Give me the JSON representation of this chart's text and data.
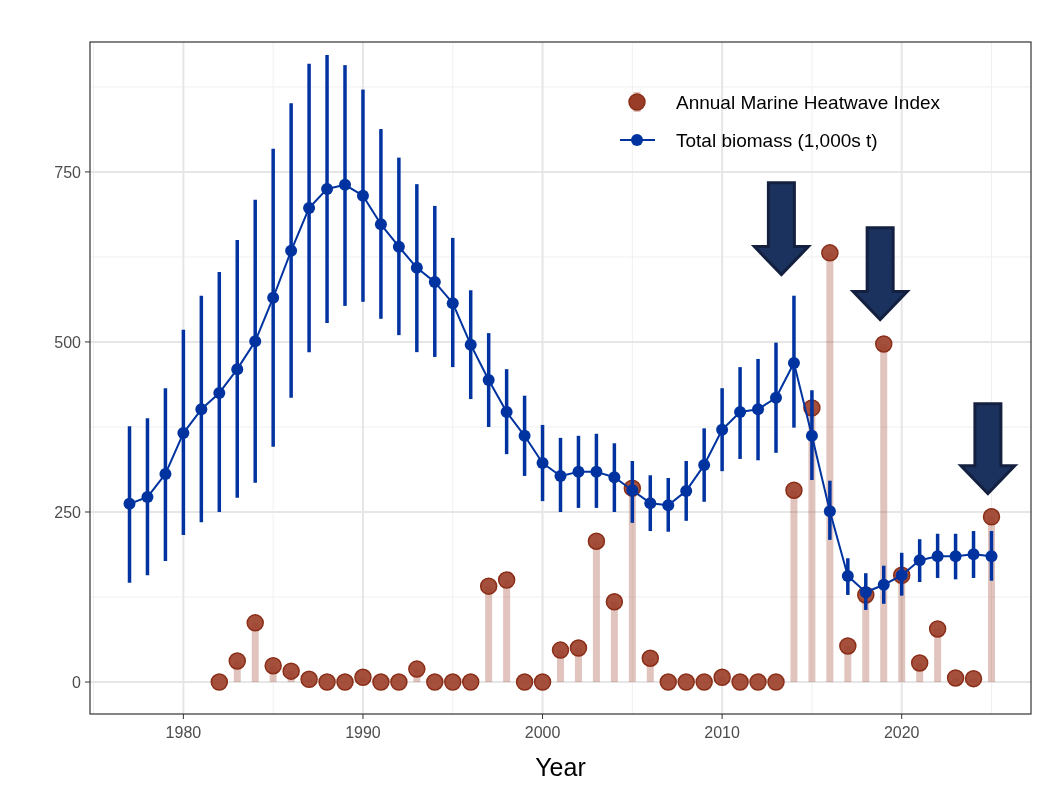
{
  "chart_data": {
    "type": "line",
    "xlabel": "Year",
    "xlim": [
      1974.8,
      2027.2
    ],
    "ylim": [
      -47,
      941
    ],
    "xticks": [
      1980,
      1990,
      2000,
      2010,
      2020
    ],
    "yticks": [
      0,
      250,
      500,
      750
    ],
    "grid": true,
    "legend": "top right",
    "series": [
      {
        "name": "Annual Marine Heatwave Index",
        "type": "lollipop",
        "color": "#9a3d28",
        "x": [
          1982,
          1983,
          1984,
          1985,
          1986,
          1987,
          1988,
          1989,
          1990,
          1991,
          1992,
          1993,
          1994,
          1995,
          1996,
          1997,
          1998,
          1999,
          2000,
          2001,
          2002,
          2003,
          2004,
          2005,
          2006,
          2007,
          2008,
          2009,
          2010,
          2011,
          2012,
          2013,
          2014,
          2015,
          2016,
          2017,
          2018,
          2019,
          2020,
          2021,
          2022,
          2023,
          2024,
          2025
        ],
        "values": [
          0,
          31,
          87,
          24,
          16,
          4,
          0,
          0,
          7,
          0,
          0,
          19,
          0,
          0,
          0,
          141,
          150,
          0,
          0,
          47,
          50,
          207,
          118,
          285,
          35,
          0,
          0,
          0,
          7,
          0,
          0,
          0,
          282,
          403,
          631,
          53,
          128,
          497,
          157,
          28,
          78,
          6,
          5,
          243
        ]
      },
      {
        "name": "Total biomass (1,000s t)",
        "color": "#0033a0",
        "marker": "circle",
        "x": [
          1977,
          1978,
          1979,
          1980,
          1981,
          1982,
          1983,
          1984,
          1985,
          1986,
          1987,
          1988,
          1989,
          1990,
          1991,
          1992,
          1993,
          1994,
          1995,
          1996,
          1997,
          1998,
          1999,
          2000,
          2001,
          2002,
          2003,
          2004,
          2005,
          2006,
          2007,
          2008,
          2009,
          2010,
          2011,
          2012,
          2013,
          2014,
          2015,
          2016,
          2017,
          2018,
          2019,
          2020,
          2021,
          2022,
          2023,
          2024,
          2025
        ],
        "values": [
          262,
          272,
          306,
          366,
          401,
          425,
          460,
          501,
          565,
          634,
          697,
          725,
          731,
          715,
          673,
          640,
          609,
          588,
          557,
          496,
          444,
          397,
          362,
          322,
          303,
          309,
          309,
          301,
          282,
          263,
          260,
          281,
          319,
          371,
          397,
          401,
          418,
          469,
          362,
          251,
          156,
          132,
          143,
          157,
          179,
          185,
          185,
          188,
          185
        ],
        "errors": [
          [
            146,
            376
          ],
          [
            157,
            388
          ],
          [
            178,
            432
          ],
          [
            216,
            518
          ],
          [
            235,
            568
          ],
          [
            250,
            603
          ],
          [
            271,
            650
          ],
          [
            293,
            709
          ],
          [
            346,
            784
          ],
          [
            418,
            851
          ],
          [
            485,
            909
          ],
          [
            528,
            922
          ],
          [
            553,
            907
          ],
          [
            559,
            871
          ],
          [
            534,
            813
          ],
          [
            510,
            771
          ],
          [
            485,
            732
          ],
          [
            478,
            700
          ],
          [
            463,
            653
          ],
          [
            416,
            576
          ],
          [
            375,
            513
          ],
          [
            335,
            460
          ],
          [
            303,
            421
          ],
          [
            266,
            378
          ],
          [
            250,
            359
          ],
          [
            256,
            362
          ],
          [
            256,
            365
          ],
          [
            250,
            351
          ],
          [
            234,
            325
          ],
          [
            222,
            304
          ],
          [
            221,
            300
          ],
          [
            237,
            325
          ],
          [
            265,
            373
          ],
          [
            310,
            432
          ],
          [
            328,
            463
          ],
          [
            326,
            475
          ],
          [
            337,
            499
          ],
          [
            374,
            568
          ],
          [
            297,
            429
          ],
          [
            209,
            296
          ],
          [
            128,
            182
          ],
          [
            106,
            160
          ],
          [
            115,
            171
          ],
          [
            127,
            190
          ],
          [
            147,
            210
          ],
          [
            153,
            218
          ],
          [
            151,
            218
          ],
          [
            153,
            222
          ],
          [
            149,
            222
          ]
        ]
      }
    ]
  }
}
